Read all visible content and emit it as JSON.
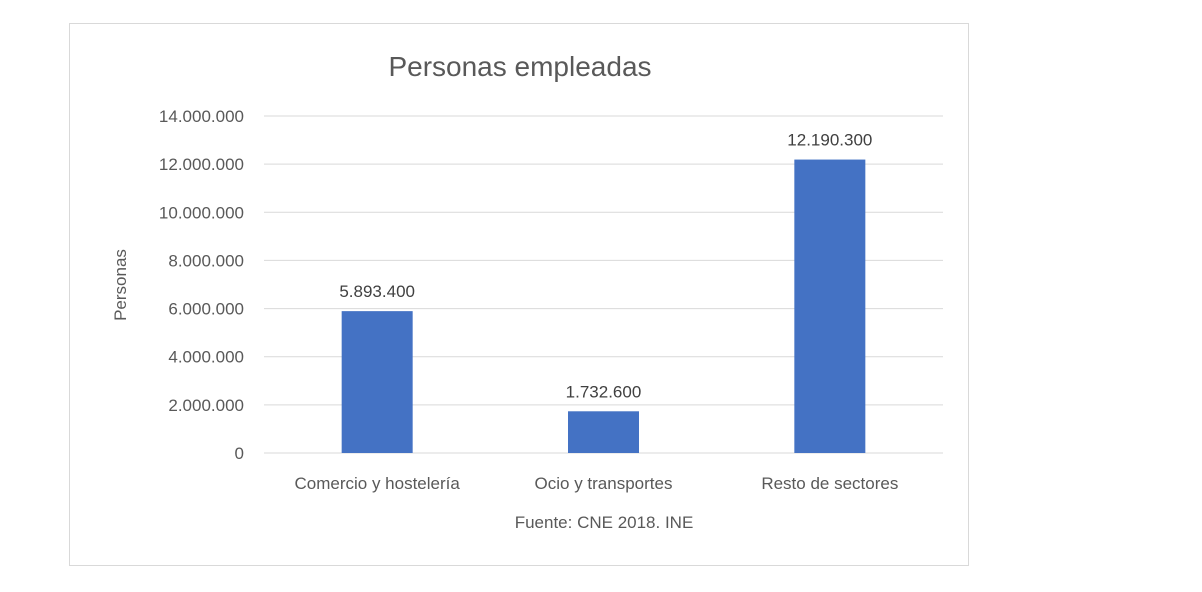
{
  "chart_data": {
    "type": "bar",
    "title": "Personas empleadas",
    "categories": [
      "Comercio y hostelería",
      "Ocio y transportes",
      "Resto de sectores"
    ],
    "values": [
      5893400,
      1732600,
      12190300
    ],
    "data_labels": [
      "5.893.400",
      "1.732.600",
      "12.190.300"
    ],
    "ylabel": "Personas",
    "xlabel": "Fuente: CNE 2018. INE",
    "ylim": [
      0,
      14000000
    ],
    "y_ticks": [
      0,
      2000000,
      4000000,
      6000000,
      8000000,
      10000000,
      12000000,
      14000000
    ],
    "y_tick_labels": [
      "0",
      "2.000.000",
      "4.000.000",
      "6.000.000",
      "8.000.000",
      "10.000.000",
      "12.000.000",
      "14.000.000"
    ],
    "grid": true,
    "legend": "none",
    "bar_color": "#4472c4",
    "grid_color": "#d9d9d9",
    "text_color": "#595959"
  }
}
